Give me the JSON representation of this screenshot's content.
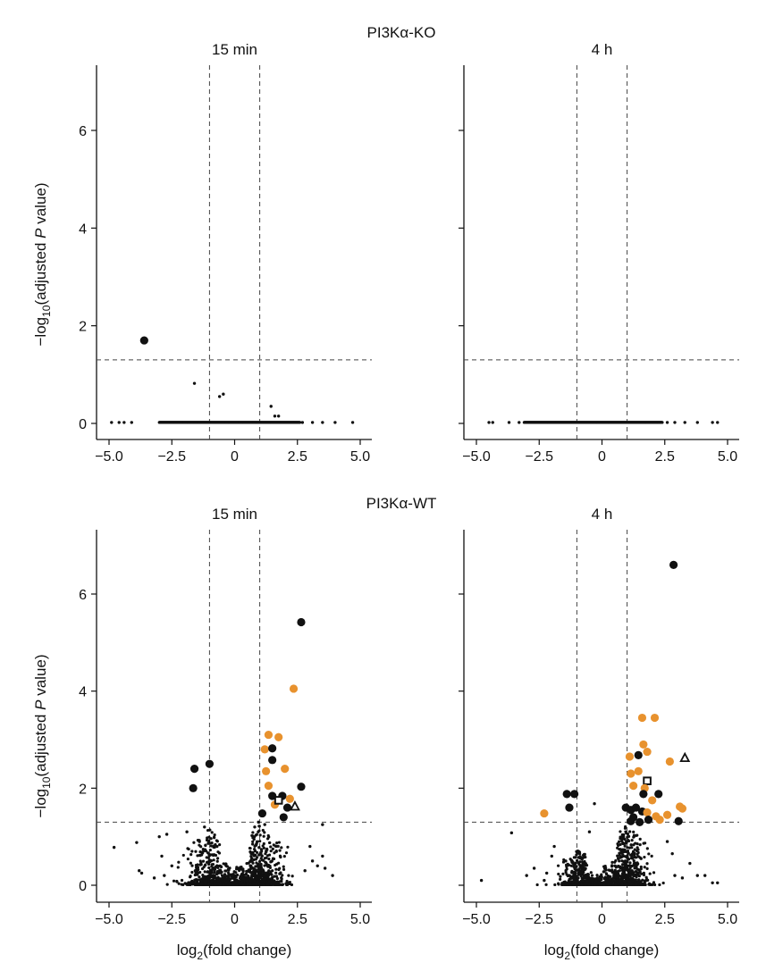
{
  "colors": {
    "black": "#111111",
    "orange": "#E8922E",
    "white": "#ffffff"
  },
  "figure": {
    "group_titles": [
      "PI3Kα-KO",
      "PI3Kα-WT"
    ],
    "ylabel_prefix": "−log",
    "ylabel_sub": "10",
    "ylabel_mid": "(adjusted ",
    "ylabel_italic": "P",
    "ylabel_end": " value)",
    "xlabel_prefix": "log",
    "xlabel_sub": "2",
    "xlabel_end": "(fold change)"
  },
  "chart_data": [
    {
      "type": "scatter",
      "group": "PI3Kα-KO",
      "title": "15 min",
      "xlim": [
        -5,
        5
      ],
      "ylim": [
        0,
        7
      ],
      "xticks": [
        "−5.0",
        "−2.5",
        "0",
        "2.5",
        "5.0"
      ],
      "xtick_values": [
        -5,
        -2.5,
        0,
        2.5,
        5
      ],
      "yticks": [
        "0",
        "2",
        "4",
        "6"
      ],
      "ytick_values": [
        0,
        2,
        4,
        6
      ],
      "vlines": [
        -1,
        1
      ],
      "hline": 1.3,
      "highlight": [
        {
          "x": -3.6,
          "y": 1.7,
          "color": "black",
          "shape": "circle"
        }
      ],
      "small": [
        [
          -4.9,
          0.02
        ],
        [
          -4.6,
          0.02
        ],
        [
          -4.4,
          0.02
        ],
        [
          -4.1,
          0.02
        ],
        [
          -1.6,
          0.82
        ],
        [
          -0.6,
          0.55
        ],
        [
          -0.45,
          0.6
        ],
        [
          1.45,
          0.35
        ],
        [
          1.6,
          0.15
        ],
        [
          1.75,
          0.15
        ],
        [
          2.7,
          0.02
        ],
        [
          3.1,
          0.02
        ],
        [
          3.5,
          0.02
        ],
        [
          4.0,
          0.02
        ],
        [
          4.7,
          0.02
        ]
      ],
      "band": {
        "xmin": -3.0,
        "xmax": 2.6,
        "y": 0.02
      }
    },
    {
      "type": "scatter",
      "group": "PI3Kα-KO",
      "title": "4 h",
      "xlim": [
        -5,
        5
      ],
      "ylim": [
        0,
        7
      ],
      "xticks": [
        "−5.0",
        "−2.5",
        "0",
        "2.5",
        "5.0"
      ],
      "xtick_values": [
        -5,
        -2.5,
        0,
        2.5,
        5
      ],
      "yticks": [
        "0",
        "2",
        "4",
        "6"
      ],
      "ytick_values": [
        0,
        2,
        4,
        6
      ],
      "vlines": [
        -1,
        1
      ],
      "hline": 1.3,
      "highlight": [],
      "small": [
        [
          -4.5,
          0.02
        ],
        [
          -4.35,
          0.02
        ],
        [
          -3.7,
          0.02
        ],
        [
          -3.3,
          0.02
        ],
        [
          2.6,
          0.02
        ],
        [
          2.9,
          0.02
        ],
        [
          3.3,
          0.02
        ],
        [
          3.8,
          0.02
        ],
        [
          4.4,
          0.02
        ],
        [
          4.6,
          0.02
        ]
      ],
      "band": {
        "xmin": -3.1,
        "xmax": 2.4,
        "y": 0.02
      }
    },
    {
      "type": "scatter",
      "group": "PI3Kα-WT",
      "title": "15 min",
      "xlim": [
        -5,
        5
      ],
      "ylim": [
        0,
        7
      ],
      "xticks": [
        "−5.0",
        "−2.5",
        "0",
        "2.5",
        "5.0"
      ],
      "xtick_values": [
        -5,
        -2.5,
        0,
        2.5,
        5
      ],
      "yticks": [
        "0",
        "2",
        "4",
        "6"
      ],
      "ytick_values": [
        0,
        2,
        4,
        6
      ],
      "vlines": [
        -1,
        1
      ],
      "hline": 1.3,
      "highlight": [
        {
          "x": -1.6,
          "y": 2.4,
          "color": "black",
          "shape": "circle"
        },
        {
          "x": -1.65,
          "y": 2.0,
          "color": "black",
          "shape": "circle"
        },
        {
          "x": -1.0,
          "y": 2.5,
          "color": "black",
          "shape": "circle"
        },
        {
          "x": 2.65,
          "y": 5.42,
          "color": "black",
          "shape": "circle"
        },
        {
          "x": 2.35,
          "y": 4.05,
          "color": "orange",
          "shape": "circle"
        },
        {
          "x": 1.35,
          "y": 3.1,
          "color": "orange",
          "shape": "circle"
        },
        {
          "x": 1.75,
          "y": 3.05,
          "color": "orange",
          "shape": "circle"
        },
        {
          "x": 1.2,
          "y": 2.8,
          "color": "orange",
          "shape": "circle"
        },
        {
          "x": 1.5,
          "y": 2.82,
          "color": "black",
          "shape": "circle"
        },
        {
          "x": 1.5,
          "y": 2.58,
          "color": "black",
          "shape": "circle"
        },
        {
          "x": 1.25,
          "y": 2.35,
          "color": "orange",
          "shape": "circle"
        },
        {
          "x": 2.0,
          "y": 2.4,
          "color": "orange",
          "shape": "circle"
        },
        {
          "x": 1.35,
          "y": 2.05,
          "color": "orange",
          "shape": "circle"
        },
        {
          "x": 2.65,
          "y": 2.03,
          "color": "black",
          "shape": "circle"
        },
        {
          "x": 1.5,
          "y": 1.84,
          "color": "black",
          "shape": "circle"
        },
        {
          "x": 1.9,
          "y": 1.84,
          "color": "black",
          "shape": "circle"
        },
        {
          "x": 2.2,
          "y": 1.78,
          "color": "orange",
          "shape": "circle"
        },
        {
          "x": 1.6,
          "y": 1.66,
          "color": "orange",
          "shape": "circle"
        },
        {
          "x": 1.75,
          "y": 1.75,
          "color": "black",
          "shape": "square"
        },
        {
          "x": 2.1,
          "y": 1.6,
          "color": "black",
          "shape": "circle"
        },
        {
          "x": 1.95,
          "y": 1.4,
          "color": "black",
          "shape": "circle"
        },
        {
          "x": 2.4,
          "y": 1.62,
          "color": "black",
          "shape": "triangle"
        },
        {
          "x": 1.1,
          "y": 1.48,
          "color": "black",
          "shape": "circle"
        }
      ],
      "small": [
        [
          -4.8,
          0.78
        ],
        [
          -3.9,
          0.88
        ],
        [
          -3.8,
          0.3
        ],
        [
          -3.7,
          0.25
        ],
        [
          -3.0,
          1.0
        ],
        [
          -2.7,
          1.05
        ],
        [
          -2.9,
          0.6
        ],
        [
          -2.5,
          0.4
        ],
        [
          -1.9,
          1.1
        ],
        [
          -1.4,
          0.9
        ],
        [
          -1.2,
          1.2
        ],
        [
          -0.7,
          0.8
        ],
        [
          0.8,
          1.2
        ],
        [
          0.95,
          1.3
        ],
        [
          1.2,
          1.25
        ],
        [
          3.0,
          0.8
        ],
        [
          3.1,
          0.5
        ],
        [
          3.3,
          0.4
        ],
        [
          3.5,
          0.6
        ],
        [
          3.6,
          0.35
        ],
        [
          3.5,
          1.25
        ],
        [
          2.8,
          0.3
        ],
        [
          -3.2,
          0.15
        ],
        [
          -2.8,
          0.2
        ],
        [
          3.9,
          0.2
        ]
      ],
      "clouds": [
        {
          "center": -1.0,
          "spread": 0.8,
          "count": 380,
          "ymax": 1.2,
          "fall": 1.6
        },
        {
          "center": 1.0,
          "spread": 0.85,
          "count": 480,
          "ymax": 1.25,
          "fall": 1.5
        },
        {
          "center": 0.0,
          "spread": 1.7,
          "count": 420,
          "ymax": 0.25,
          "fall": 4.0
        }
      ],
      "seed": 7
    },
    {
      "type": "scatter",
      "group": "PI3Kα-WT",
      "title": "4 h",
      "xlim": [
        -5,
        5
      ],
      "ylim": [
        0,
        7
      ],
      "xticks": [
        "−5.0",
        "−2.5",
        "0",
        "2.5",
        "5.0"
      ],
      "xtick_values": [
        -5,
        -2.5,
        0,
        2.5,
        5
      ],
      "yticks": [
        "0",
        "2",
        "4",
        "6"
      ],
      "ytick_values": [
        0,
        2,
        4,
        6
      ],
      "vlines": [
        -1,
        1
      ],
      "hline": 1.3,
      "highlight": [
        {
          "x": 2.85,
          "y": 6.6,
          "color": "black",
          "shape": "circle"
        },
        {
          "x": 1.6,
          "y": 3.45,
          "color": "orange",
          "shape": "circle"
        },
        {
          "x": 2.1,
          "y": 3.45,
          "color": "orange",
          "shape": "circle"
        },
        {
          "x": 1.65,
          "y": 2.9,
          "color": "orange",
          "shape": "circle"
        },
        {
          "x": 1.1,
          "y": 2.65,
          "color": "orange",
          "shape": "circle"
        },
        {
          "x": 1.8,
          "y": 2.75,
          "color": "orange",
          "shape": "circle"
        },
        {
          "x": 1.45,
          "y": 2.68,
          "color": "black",
          "shape": "circle"
        },
        {
          "x": 2.7,
          "y": 2.55,
          "color": "orange",
          "shape": "circle"
        },
        {
          "x": 3.3,
          "y": 2.62,
          "color": "black",
          "shape": "triangle"
        },
        {
          "x": 1.15,
          "y": 2.3,
          "color": "orange",
          "shape": "circle"
        },
        {
          "x": 1.45,
          "y": 2.35,
          "color": "orange",
          "shape": "circle"
        },
        {
          "x": 1.8,
          "y": 2.15,
          "color": "black",
          "shape": "square"
        },
        {
          "x": 1.7,
          "y": 2.0,
          "color": "orange",
          "shape": "circle"
        },
        {
          "x": 1.25,
          "y": 2.05,
          "color": "orange",
          "shape": "circle"
        },
        {
          "x": -1.4,
          "y": 1.88,
          "color": "black",
          "shape": "circle"
        },
        {
          "x": -1.1,
          "y": 1.88,
          "color": "black",
          "shape": "circle"
        },
        {
          "x": -1.3,
          "y": 1.6,
          "color": "black",
          "shape": "circle"
        },
        {
          "x": -2.3,
          "y": 1.48,
          "color": "orange",
          "shape": "circle"
        },
        {
          "x": 1.65,
          "y": 1.88,
          "color": "black",
          "shape": "circle"
        },
        {
          "x": 2.25,
          "y": 1.88,
          "color": "black",
          "shape": "circle"
        },
        {
          "x": 2.0,
          "y": 1.75,
          "color": "orange",
          "shape": "circle"
        },
        {
          "x": 0.95,
          "y": 1.6,
          "color": "black",
          "shape": "circle"
        },
        {
          "x": 1.15,
          "y": 1.55,
          "color": "black",
          "shape": "circle"
        },
        {
          "x": 1.35,
          "y": 1.6,
          "color": "black",
          "shape": "circle"
        },
        {
          "x": 1.6,
          "y": 1.52,
          "color": "black",
          "shape": "circle"
        },
        {
          "x": 1.8,
          "y": 1.5,
          "color": "orange",
          "shape": "circle"
        },
        {
          "x": 1.25,
          "y": 1.4,
          "color": "black",
          "shape": "circle"
        },
        {
          "x": 1.85,
          "y": 1.35,
          "color": "black",
          "shape": "circle"
        },
        {
          "x": 1.5,
          "y": 1.3,
          "color": "black",
          "shape": "circle"
        },
        {
          "x": 1.15,
          "y": 1.32,
          "color": "black",
          "shape": "circle"
        },
        {
          "x": 2.15,
          "y": 1.42,
          "color": "orange",
          "shape": "circle"
        },
        {
          "x": 2.3,
          "y": 1.35,
          "color": "orange",
          "shape": "circle"
        },
        {
          "x": 2.6,
          "y": 1.45,
          "color": "orange",
          "shape": "circle"
        },
        {
          "x": 3.1,
          "y": 1.62,
          "color": "orange",
          "shape": "circle"
        },
        {
          "x": 3.2,
          "y": 1.58,
          "color": "orange",
          "shape": "circle"
        },
        {
          "x": 3.05,
          "y": 1.32,
          "color": "black",
          "shape": "circle"
        }
      ],
      "small": [
        [
          -4.8,
          0.1
        ],
        [
          -3.6,
          1.08
        ],
        [
          -3.0,
          0.2
        ],
        [
          -2.7,
          0.35
        ],
        [
          -2.3,
          0.1
        ],
        [
          -0.3,
          1.68
        ],
        [
          -0.5,
          1.1
        ],
        [
          2.9,
          0.2
        ],
        [
          3.2,
          0.15
        ],
        [
          3.5,
          0.45
        ],
        [
          3.8,
          0.2
        ],
        [
          4.1,
          0.2
        ],
        [
          4.4,
          0.05
        ],
        [
          4.6,
          0.05
        ],
        [
          -2.0,
          0.6
        ],
        [
          -2.2,
          0.25
        ],
        [
          -1.9,
          0.8
        ],
        [
          2.6,
          0.9
        ],
        [
          2.8,
          0.65
        ]
      ],
      "clouds": [
        {
          "center": -0.9,
          "spread": 0.6,
          "count": 280,
          "ymax": 0.75,
          "fall": 2.0
        },
        {
          "center": 1.0,
          "spread": 0.75,
          "count": 520,
          "ymax": 1.25,
          "fall": 1.4
        },
        {
          "center": 0.0,
          "spread": 1.4,
          "count": 330,
          "ymax": 0.2,
          "fall": 4.0
        }
      ],
      "seed": 13
    }
  ]
}
